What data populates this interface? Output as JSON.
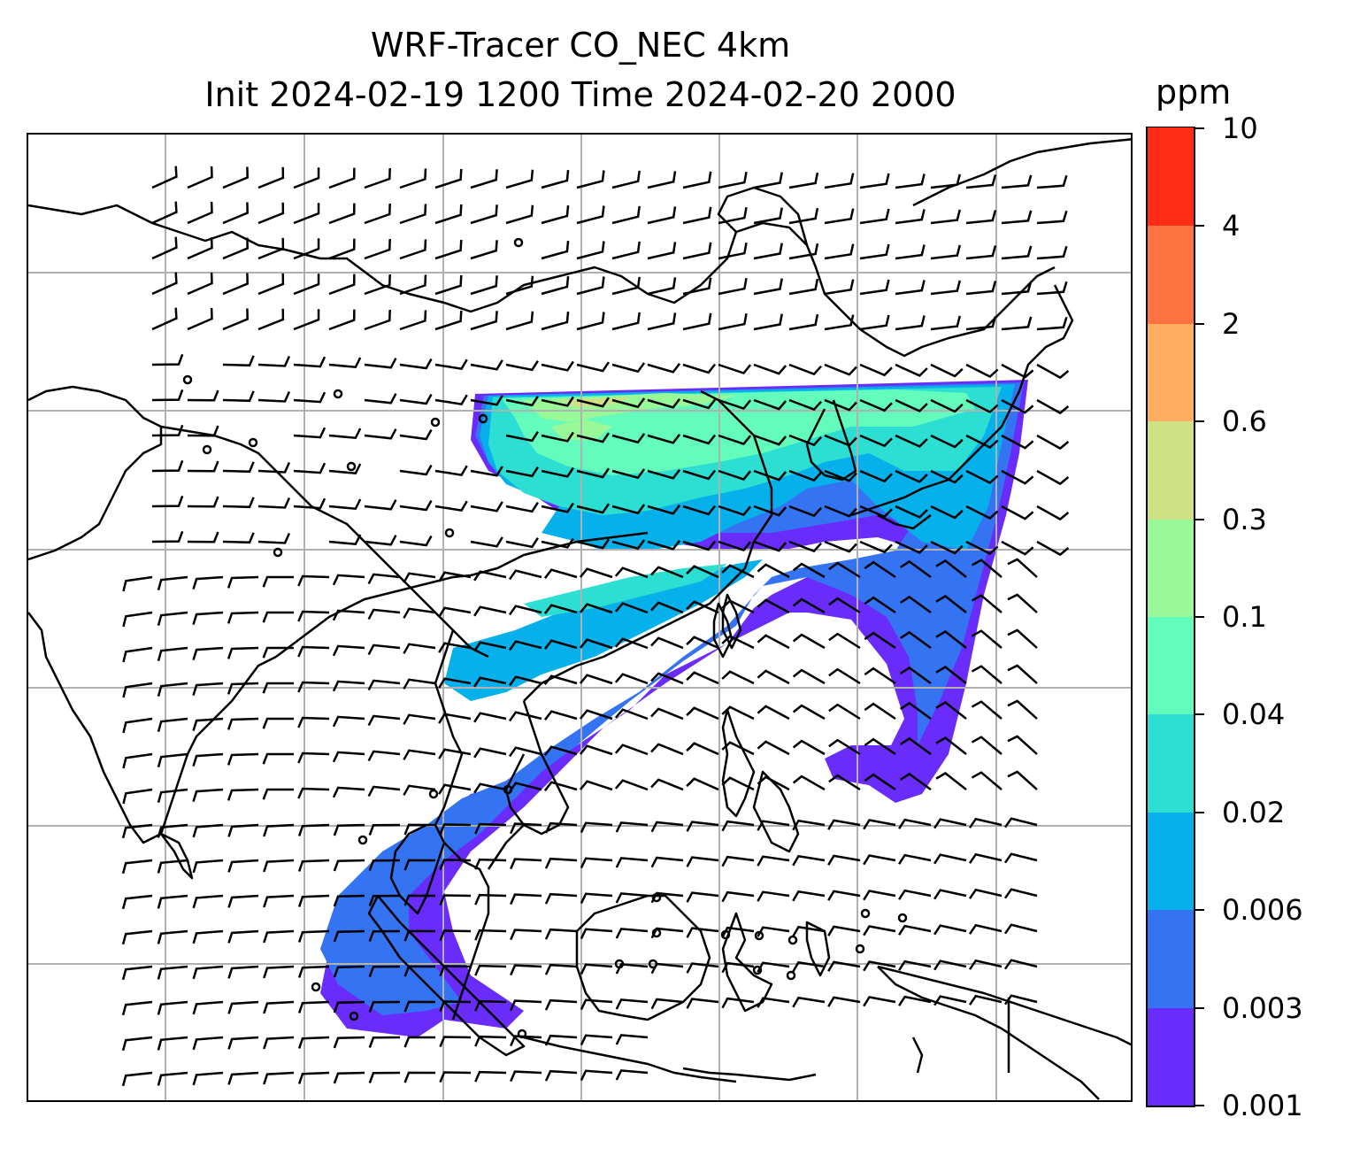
{
  "title": {
    "line1": "WRF-Tracer CO_NEC 4km",
    "line2": "Init 2024-02-19 1200 Time 2024-02-20 2000"
  },
  "map": {
    "projection": "lat-lon",
    "gridlines": true,
    "coastlines": true,
    "country_borders": true,
    "overlay": "wind barbs",
    "plume_note": "CO tracer plume from East Asia spreading over the South China Sea and Maritime Continent"
  },
  "colorbar": {
    "unit": "ppm",
    "levels": [
      "0.001",
      "0.003",
      "0.006",
      "0.02",
      "0.04",
      "0.1",
      "0.3",
      "0.6",
      "2",
      "4",
      "10"
    ],
    "colors": [
      "#6a2cfb",
      "#3474f3",
      "#06b0eb",
      "#2ddfd2",
      "#64fcbc",
      "#99f897",
      "#cfe085",
      "#feae60",
      "#fe7140",
      "#fe2d18"
    ]
  }
}
